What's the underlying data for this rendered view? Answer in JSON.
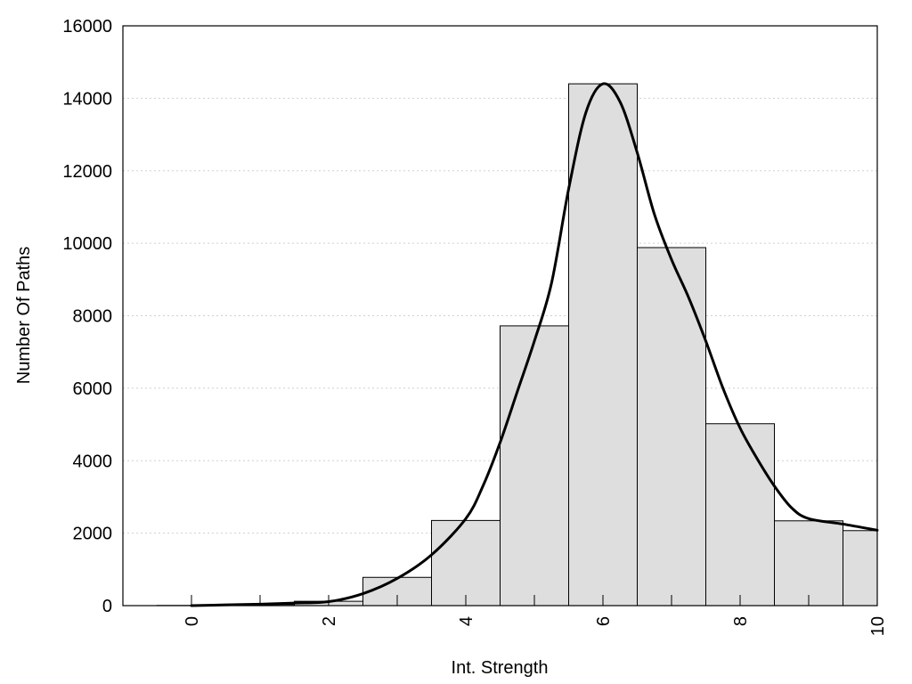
{
  "chart_data": {
    "type": "bar",
    "xlabel": "Int. Strength",
    "ylabel": "Number Of Paths",
    "xlim": [
      -1,
      10
    ],
    "ylim": [
      0,
      16000
    ],
    "x_ticks": [
      0,
      2,
      4,
      6,
      8,
      10
    ],
    "y_ticks": [
      0,
      2000,
      4000,
      6000,
      8000,
      10000,
      12000,
      14000,
      16000
    ],
    "grid": "horizontal dotted",
    "bar_color": "#dedede",
    "bars": [
      {
        "x_start": 0,
        "x_end": 1,
        "value": 5
      },
      {
        "x_start": 1,
        "x_end": 2,
        "value": 30
      },
      {
        "x_start": 2,
        "x_end": 3,
        "value": 120
      },
      {
        "x_start": 3,
        "x_end": 4,
        "value": 780
      },
      {
        "x_start": 4,
        "x_end": 5,
        "value": 2350
      },
      {
        "x_start": 5,
        "x_end": 6,
        "value": 7720
      },
      {
        "x_start": 6,
        "x_end": 7,
        "value": 14400
      },
      {
        "x_start": 7,
        "x_end": 8,
        "value": 9880
      },
      {
        "x_start": 8,
        "x_end": 9,
        "value": 5020
      },
      {
        "x_start": 9,
        "x_end": 10,
        "value": 2340
      },
      {
        "x_start": 10,
        "x_end": 11,
        "value": 2070
      }
    ],
    "curve": {
      "x": [
        0,
        0.5,
        1,
        1.5,
        2,
        2.5,
        3,
        3.5,
        4,
        4.25,
        4.5,
        4.75,
        5,
        5.25,
        5.5,
        5.75,
        6,
        6.25,
        6.5,
        6.75,
        7,
        7.25,
        7.5,
        7.75,
        8,
        8.25,
        8.5,
        8.75,
        9,
        9.5,
        10
      ],
      "y": [
        0,
        20,
        40,
        70,
        110,
        330,
        750,
        1400,
        2400,
        3300,
        4500,
        5900,
        7300,
        8900,
        11500,
        13600,
        14400,
        13900,
        12500,
        10800,
        9550,
        8500,
        7300,
        6000,
        4900,
        4050,
        3300,
        2700,
        2400,
        2250,
        2080
      ]
    }
  }
}
